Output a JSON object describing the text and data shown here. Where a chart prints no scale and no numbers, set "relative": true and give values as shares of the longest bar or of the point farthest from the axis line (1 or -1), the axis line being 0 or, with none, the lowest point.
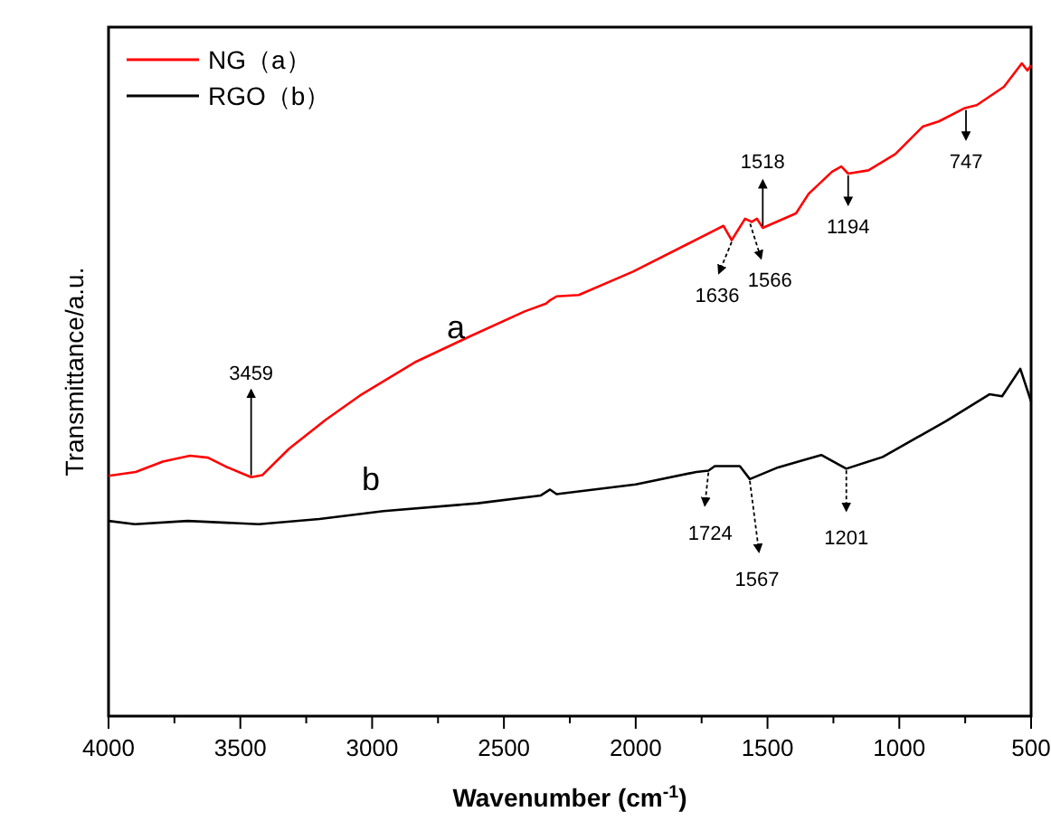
{
  "chart_data": {
    "type": "line",
    "relative": true,
    "xlabel": "Wavenumber (cm$^{-1}$)",
    "ylabel": "Transmittance/a.u.",
    "xlim": [
      4000,
      500
    ],
    "xticks": [
      4000,
      {
        "value": 3750,
        "label": null
      },
      3500,
      {
        "value": 3250,
        "label": null
      },
      3000,
      {
        "value": 2750,
        "label": null
      },
      2500,
      {
        "value": 2250,
        "label": null
      },
      2000,
      {
        "value": 1750,
        "label": null
      },
      1500,
      {
        "value": 1250,
        "label": null
      },
      1000,
      {
        "value": 750,
        "label": null
      },
      500
    ],
    "legend": "top left",
    "line_style": "solid",
    "marker": "none",
    "series": [
      {
        "name": "NG（a）",
        "color": "#ff0000",
        "x": [
          4000,
          3897,
          3794,
          3691,
          3623,
          3554,
          3459,
          3417,
          3314,
          3176,
          3039,
          2833,
          2627,
          2421,
          2340,
          2325,
          2300,
          2216,
          2010,
          1804,
          1667,
          1636,
          1585,
          1560,
          1540,
          1518,
          1392,
          1344,
          1255,
          1220,
          1194,
          1117,
          1015,
          911,
          850,
          754,
          706,
          603,
          535,
          514,
          500
        ],
        "values": [
          0.368,
          0.374,
          0.39,
          0.399,
          0.396,
          0.382,
          0.366,
          0.369,
          0.41,
          0.454,
          0.493,
          0.543,
          0.582,
          0.62,
          0.632,
          0.637,
          0.643,
          0.645,
          0.681,
          0.723,
          0.751,
          0.729,
          0.762,
          0.757,
          0.762,
          0.748,
          0.77,
          0.8,
          0.834,
          0.842,
          0.831,
          0.836,
          0.861,
          0.903,
          0.911,
          0.931,
          0.936,
          0.964,
          1,
          0.989,
          0.997
        ]
      },
      {
        "name": "RGO（b）",
        "color": "#000000",
        "x": [
          4000,
          3900,
          3700,
          3430,
          3200,
          2957,
          2600,
          2360,
          2325,
          2300,
          2000,
          1770,
          1724,
          1700,
          1605,
          1567,
          1460,
          1296,
          1201,
          1063,
          822,
          658,
          610,
          541,
          500
        ],
        "values": [
          0.299,
          0.294,
          0.299,
          0.294,
          0.302,
          0.314,
          0.326,
          0.338,
          0.347,
          0.34,
          0.355,
          0.374,
          0.376,
          0.383,
          0.383,
          0.363,
          0.381,
          0.4,
          0.379,
          0.397,
          0.452,
          0.493,
          0.49,
          0.532,
          0.482
        ]
      }
    ],
    "annotations": [
      {
        "text": "3459",
        "x": 3459,
        "y": 0.366
      },
      {
        "text": "1636",
        "x": 1636,
        "y": 0.729
      },
      {
        "text": "1566",
        "x": 1566,
        "y": 0.757
      },
      {
        "text": "1518",
        "x": 1518,
        "y": 0.748
      },
      {
        "text": "1194",
        "x": 1194,
        "y": 0.831
      },
      {
        "text": "747",
        "x": 747,
        "y": 0.931
      },
      {
        "text": "1724",
        "x": 1724,
        "y": 0.376
      },
      {
        "text": "1567",
        "x": 1567,
        "y": 0.363
      },
      {
        "text": "1201",
        "x": 1201,
        "y": 0.379
      },
      "a",
      "b"
    ]
  }
}
